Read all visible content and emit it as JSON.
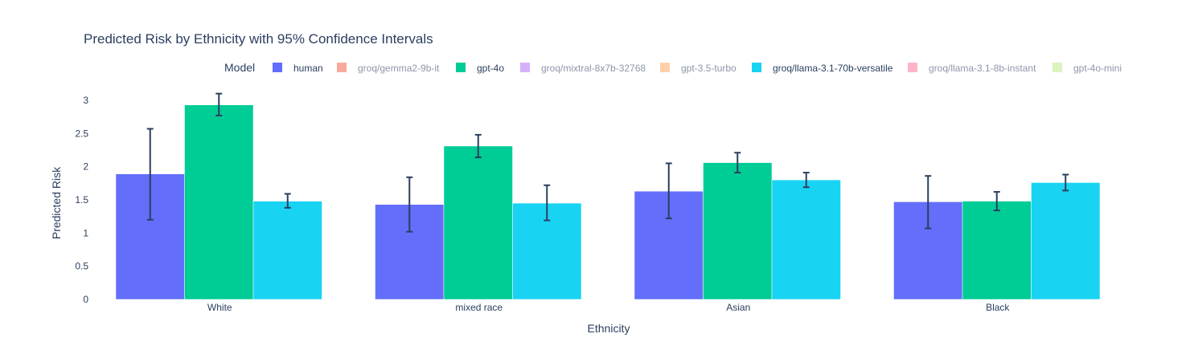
{
  "chart_data": {
    "type": "bar",
    "title": "Predicted Risk by Ethnicity with 95% Confidence Intervals",
    "xlabel": "Ethnicity",
    "ylabel": "Predicted Risk",
    "categories": [
      "White",
      "mixed race",
      "Asian",
      "Black"
    ],
    "ylim": [
      0,
      3.1
    ],
    "yticks": [
      0,
      0.5,
      1,
      1.5,
      2,
      2.5,
      3
    ],
    "yticklabels": [
      "0",
      "0.5",
      "1",
      "1.5",
      "2",
      "2.5",
      "3"
    ],
    "grid": false,
    "legend_title": "Model",
    "legend_placement": "top",
    "series": [
      {
        "name": "human",
        "color": "#636efa",
        "visible": true,
        "values": [
          1.89,
          1.43,
          1.63,
          1.47
        ],
        "err_low": [
          1.2,
          1.02,
          1.22,
          1.07
        ],
        "err_high": [
          2.57,
          1.84,
          2.05,
          1.86
        ]
      },
      {
        "name": "groq/gemma2-9b-it",
        "color": "#EF553B",
        "visible": false
      },
      {
        "name": "gpt-4o",
        "color": "#00cc96",
        "visible": true,
        "values": [
          2.93,
          2.31,
          2.06,
          1.48
        ],
        "err_low": [
          2.77,
          2.14,
          1.91,
          1.34
        ],
        "err_high": [
          3.1,
          2.48,
          2.21,
          1.62
        ]
      },
      {
        "name": "groq/mixtral-8x7b-32768",
        "color": "#ab63fa",
        "visible": false
      },
      {
        "name": "gpt-3.5-turbo",
        "color": "#FFA15A",
        "visible": false
      },
      {
        "name": "groq/llama-3.1-70b-versatile",
        "color": "#19d3f3",
        "visible": true,
        "values": [
          1.48,
          1.45,
          1.8,
          1.76
        ],
        "err_low": [
          1.38,
          1.19,
          1.69,
          1.64
        ],
        "err_high": [
          1.59,
          1.72,
          1.91,
          1.88
        ]
      },
      {
        "name": "groq/llama-3.1-8b-instant",
        "color": "#FF6692",
        "visible": false
      },
      {
        "name": "gpt-4o-mini",
        "color": "#B6E880",
        "visible": false
      }
    ]
  },
  "colors": {
    "text": "#2a3f5f",
    "error_bar": "#2a3f5f",
    "hidden_legend_text": "#8c96a8"
  }
}
